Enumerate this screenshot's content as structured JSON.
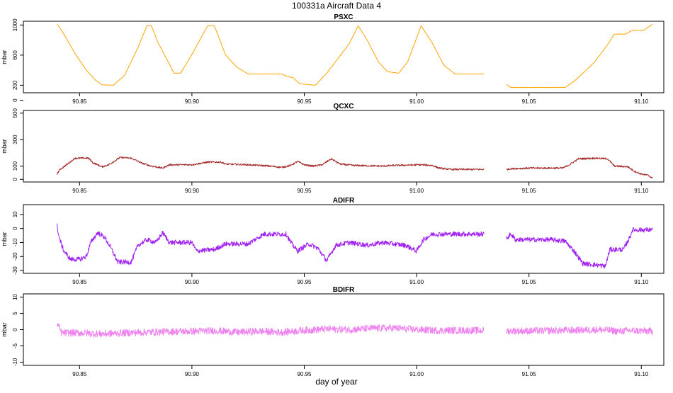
{
  "title": "100331a   Aircraft Data 4",
  "xlabel": "day of year",
  "chart_data": [
    {
      "type": "line",
      "title": "PSXC",
      "ylabel": "mbar",
      "color": "#FFA500",
      "xlim": [
        90.825,
        91.11
      ],
      "ylim": [
        100,
        1050
      ],
      "yticks": [
        0,
        200,
        600,
        1000
      ],
      "xticks": [
        90.85,
        90.9,
        90.95,
        91.0,
        91.05,
        91.1
      ],
      "series": [
        {
          "values": [
            [
              90.84,
              1012
            ],
            [
              90.843,
              880
            ],
            [
              90.848,
              620
            ],
            [
              90.853,
              400
            ],
            [
              90.857,
              270
            ],
            [
              90.86,
              205
            ],
            [
              90.865,
              200
            ],
            [
              90.87,
              330
            ],
            [
              90.876,
              700
            ],
            [
              90.88,
              990
            ],
            [
              90.882,
              990
            ],
            [
              90.885,
              760
            ],
            [
              90.89,
              480
            ],
            [
              90.892,
              360
            ],
            [
              90.895,
              360
            ],
            [
              90.9,
              610
            ],
            [
              90.907,
              990
            ],
            [
              90.91,
              990
            ],
            [
              90.915,
              600
            ],
            [
              90.92,
              440
            ],
            [
              90.925,
              350
            ],
            [
              90.93,
              350
            ],
            [
              90.94,
              350
            ],
            [
              90.942,
              320
            ],
            [
              90.945,
              300
            ],
            [
              90.948,
              220
            ],
            [
              90.955,
              200
            ],
            [
              90.96,
              360
            ],
            [
              90.97,
              750
            ],
            [
              90.974,
              990
            ],
            [
              90.978,
              800
            ],
            [
              90.983,
              510
            ],
            [
              90.987,
              380
            ],
            [
              90.992,
              360
            ],
            [
              90.996,
              510
            ],
            [
              91.002,
              990
            ],
            [
              91.007,
              760
            ],
            [
              91.012,
              470
            ],
            [
              91.017,
              350
            ],
            [
              91.03,
              350
            ]
          ]
        },
        {
          "values": [
            [
              91.04,
              210
            ],
            [
              91.042,
              170
            ],
            [
              91.05,
              170
            ],
            [
              91.066,
              170
            ],
            [
              91.07,
              250
            ],
            [
              91.074,
              360
            ],
            [
              91.079,
              500
            ],
            [
              91.085,
              740
            ],
            [
              91.088,
              880
            ],
            [
              91.093,
              880
            ],
            [
              91.096,
              930
            ],
            [
              91.101,
              930
            ],
            [
              91.105,
              1010
            ]
          ]
        }
      ]
    },
    {
      "type": "line",
      "title": "QCXC",
      "ylabel": "mbar",
      "color": "#A52A2A",
      "xlim": [
        90.825,
        91.11
      ],
      "ylim": [
        -20,
        520
      ],
      "yticks": [
        0,
        100,
        300,
        500
      ],
      "xticks": [
        90.85,
        90.9,
        90.95,
        91.0,
        91.05,
        91.1
      ],
      "series": [
        {
          "values": [
            [
              90.84,
              40
            ],
            [
              90.841,
              70
            ],
            [
              90.845,
              120
            ],
            [
              90.848,
              160
            ],
            [
              90.854,
              160
            ],
            [
              90.856,
              125
            ],
            [
              90.86,
              95
            ],
            [
              90.863,
              110
            ],
            [
              90.868,
              165
            ],
            [
              90.873,
              160
            ],
            [
              90.878,
              120
            ],
            [
              90.882,
              100
            ],
            [
              90.887,
              85
            ],
            [
              90.89,
              110
            ],
            [
              90.9,
              110
            ],
            [
              90.907,
              130
            ],
            [
              90.913,
              130
            ],
            [
              90.915,
              115
            ],
            [
              90.925,
              110
            ],
            [
              90.935,
              100
            ],
            [
              90.94,
              90
            ],
            [
              90.944,
              105
            ],
            [
              90.947,
              135
            ],
            [
              90.95,
              110
            ],
            [
              90.954,
              100
            ],
            [
              90.958,
              110
            ],
            [
              90.962,
              155
            ],
            [
              90.966,
              115
            ],
            [
              90.972,
              105
            ],
            [
              90.985,
              100
            ],
            [
              90.99,
              105
            ],
            [
              91.002,
              110
            ],
            [
              91.007,
              105
            ],
            [
              91.01,
              85
            ],
            [
              91.015,
              75
            ],
            [
              91.03,
              75
            ]
          ]
        },
        {
          "values": [
            [
              91.04,
              75
            ],
            [
              91.042,
              80
            ],
            [
              91.05,
              85
            ],
            [
              91.065,
              85
            ],
            [
              91.068,
              110
            ],
            [
              91.072,
              155
            ],
            [
              91.08,
              160
            ],
            [
              91.085,
              155
            ],
            [
              91.088,
              100
            ],
            [
              91.094,
              95
            ],
            [
              91.097,
              60
            ],
            [
              91.1,
              40
            ],
            [
              91.103,
              30
            ],
            [
              91.105,
              10
            ]
          ]
        }
      ]
    },
    {
      "type": "line",
      "title": "ADIFR",
      "ylabel": "mbar",
      "color": "#A020F0",
      "xlim": [
        90.825,
        91.11
      ],
      "ylim": [
        -32,
        17
      ],
      "yticks": [
        -30,
        -20,
        -10,
        0,
        10
      ],
      "xticks": [
        90.85,
        90.9,
        90.95,
        91.0,
        91.05,
        91.1
      ],
      "series": [
        {
          "values": [
            [
              90.84,
              2
            ],
            [
              90.841,
              -7
            ],
            [
              90.843,
              -16
            ],
            [
              90.846,
              -22
            ],
            [
              90.85,
              -22
            ],
            [
              90.853,
              -20
            ],
            [
              90.855,
              -10
            ],
            [
              90.858,
              -3
            ],
            [
              90.861,
              -6
            ],
            [
              90.864,
              -14
            ],
            [
              90.867,
              -24
            ],
            [
              90.873,
              -24
            ],
            [
              90.876,
              -12
            ],
            [
              90.88,
              -8
            ],
            [
              90.884,
              -10
            ],
            [
              90.887,
              -3
            ],
            [
              90.89,
              -10
            ],
            [
              90.895,
              -10
            ],
            [
              90.9,
              -10
            ],
            [
              90.902,
              -16
            ],
            [
              90.91,
              -15
            ],
            [
              90.915,
              -11
            ],
            [
              90.925,
              -11
            ],
            [
              90.932,
              -4
            ],
            [
              90.942,
              -4
            ],
            [
              90.944,
              -10
            ],
            [
              90.947,
              -16
            ],
            [
              90.952,
              -11
            ],
            [
              90.956,
              -14
            ],
            [
              90.96,
              -23
            ],
            [
              90.964,
              -12
            ],
            [
              90.97,
              -10
            ],
            [
              90.978,
              -12
            ],
            [
              90.985,
              -10
            ],
            [
              90.995,
              -12
            ],
            [
              91.0,
              -16
            ],
            [
              91.003,
              -8
            ],
            [
              91.007,
              -4
            ],
            [
              91.03,
              -4
            ]
          ]
        },
        {
          "values": [
            [
              91.04,
              -7
            ],
            [
              91.042,
              -4
            ],
            [
              91.044,
              -8
            ],
            [
              91.06,
              -8
            ],
            [
              91.066,
              -9
            ],
            [
              91.07,
              -16
            ],
            [
              91.074,
              -25
            ],
            [
              91.08,
              -26
            ],
            [
              91.084,
              -27
            ],
            [
              91.086,
              -15
            ],
            [
              91.092,
              -15
            ],
            [
              91.095,
              -6
            ],
            [
              91.096,
              -1
            ],
            [
              91.105,
              -1
            ]
          ]
        }
      ]
    },
    {
      "type": "line",
      "title": "BDIFR",
      "ylabel": "mbar",
      "color": "#EE82EE",
      "xlim": [
        90.825,
        91.11
      ],
      "ylim": [
        -11,
        11
      ],
      "yticks": [
        -10,
        -5,
        0,
        5,
        10
      ],
      "xticks": [
        90.85,
        90.9,
        90.95,
        91.0,
        91.05,
        91.1
      ],
      "series": [
        {
          "values": [
            [
              90.84,
              2
            ],
            [
              90.842,
              -1
            ],
            [
              90.85,
              -1
            ],
            [
              90.86,
              -1.3
            ],
            [
              90.87,
              -1
            ],
            [
              90.88,
              -0.8
            ],
            [
              90.89,
              -0.6
            ],
            [
              90.9,
              -0.5
            ],
            [
              90.91,
              -0.3
            ],
            [
              90.92,
              -0.8
            ],
            [
              90.93,
              -0.5
            ],
            [
              90.94,
              -0.8
            ],
            [
              90.95,
              -0.2
            ],
            [
              90.96,
              0.2
            ],
            [
              90.97,
              0
            ],
            [
              90.98,
              0.4
            ],
            [
              90.99,
              0.5
            ],
            [
              91.0,
              0
            ],
            [
              91.01,
              -0.3
            ],
            [
              91.02,
              -0.2
            ],
            [
              91.03,
              -0.3
            ]
          ]
        },
        {
          "values": [
            [
              91.04,
              -0.4
            ],
            [
              91.05,
              -0.4
            ],
            [
              91.06,
              -0.3
            ],
            [
              91.07,
              -0.2
            ],
            [
              91.08,
              0
            ],
            [
              91.085,
              -0.2
            ],
            [
              91.09,
              -0.5
            ],
            [
              91.095,
              -0.3
            ],
            [
              91.1,
              -0.4
            ],
            [
              91.105,
              -0.5
            ]
          ]
        }
      ]
    }
  ]
}
